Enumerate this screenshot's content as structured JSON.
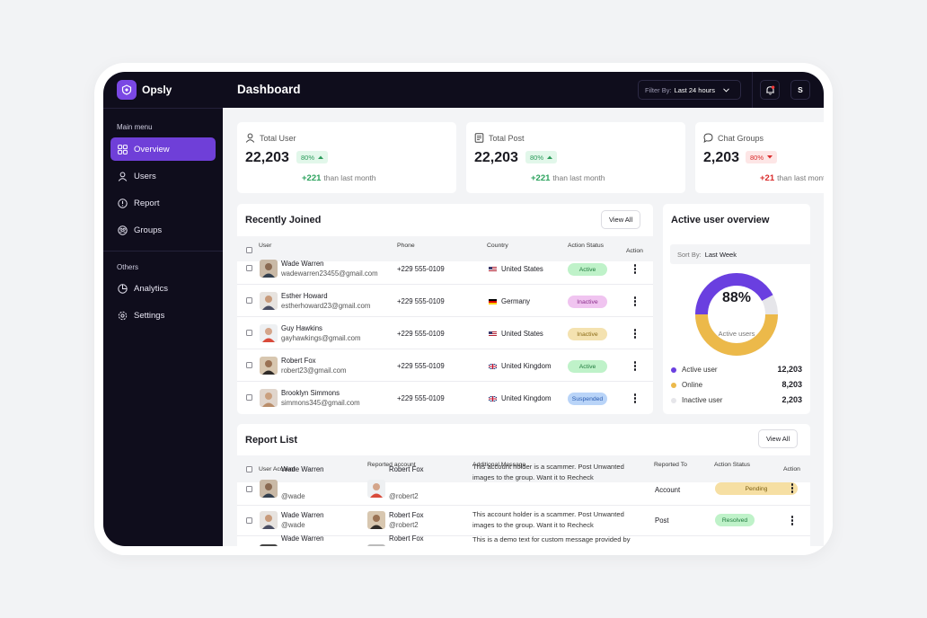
{
  "app": {
    "name": "Opsly"
  },
  "colors": {
    "accent": "#6f3fd8",
    "sidebar_bg": "#0f0d1c",
    "active_user": "#6a3fe0",
    "online": "#ecb94a",
    "inactive_user": "#e6e6ea"
  },
  "sidebar": {
    "main_heading": "Main menu",
    "main_items": [
      {
        "label": "Overview",
        "icon": "grid-icon",
        "active": true
      },
      {
        "label": "Users",
        "icon": "user-icon"
      },
      {
        "label": "Report",
        "icon": "alert-icon"
      },
      {
        "label": "Groups",
        "icon": "groups-icon"
      }
    ],
    "others_heading": "Others",
    "other_items": [
      {
        "label": "Analytics",
        "icon": "pie-icon"
      },
      {
        "label": "Settings",
        "icon": "gear-icon"
      }
    ]
  },
  "topbar": {
    "title": "Dashboard",
    "filter_label": "Filter By:",
    "filter_value": "Last 24 hours",
    "avatar_initial": "S"
  },
  "stats": [
    {
      "label": "Total User",
      "value": "22,203",
      "pct": "80%",
      "trend": "up",
      "delta": "+221",
      "delta_text": "than last month"
    },
    {
      "label": "Total Post",
      "value": "22,203",
      "pct": "80%",
      "trend": "up",
      "delta": "+221",
      "delta_text": "than last month"
    },
    {
      "label": "Chat Groups",
      "value": "2,203",
      "pct": "80%",
      "trend": "down",
      "delta": "+21",
      "delta_text": "than last month"
    }
  ],
  "recent": {
    "title": "Recently Joined",
    "view_all": "View All",
    "columns": [
      "User",
      "Phone",
      "Country",
      "Action Status",
      "Action"
    ],
    "rows": [
      {
        "name": "Wade Warren",
        "email": "wadewarren23455@gmail.com",
        "phone": "+229 555-0109",
        "country": "United States",
        "flag": "us",
        "status": "Active"
      },
      {
        "name": "Esther Howard",
        "email": "estherhoward23@gmail.com",
        "phone": "+229 555-0109",
        "country": "Germany",
        "flag": "de",
        "status": "Inactive"
      },
      {
        "name": "Guy Hawkins",
        "email": "gayhawkings@gmail.com",
        "phone": "+229 555-0109",
        "country": "United States",
        "flag": "us",
        "status": "Inactive"
      },
      {
        "name": "Robert Fox",
        "email": "robert23@gmail.com",
        "phone": "+229 555-0109",
        "country": "United Kingdom",
        "flag": "uk",
        "status": "Active"
      },
      {
        "name": "Brooklyn Simmons",
        "email": "simmons345@gmail.com",
        "phone": "+229 555-0109",
        "country": "United Kingdom",
        "flag": "uk",
        "status": "Suspended"
      }
    ]
  },
  "overview": {
    "title": "Active user overview",
    "sort_label": "Sort By:",
    "sort_value": "Last Week",
    "donut_pct": "88%",
    "donut_caption": "Active users",
    "legend": [
      {
        "label": "Active user",
        "value": "12,203"
      },
      {
        "label": "Online",
        "value": "8,203"
      },
      {
        "label": "Inactive user",
        "value": "2,203"
      }
    ]
  },
  "reports": {
    "title": "Report List",
    "view_all": "View All",
    "columns": [
      "User Account",
      "Reported account",
      "Additional Message",
      "Reported To",
      "Action Status",
      "Action"
    ],
    "rows": [
      {
        "user": "Wade Warren",
        "handle": "@wade",
        "reported": "Robert Fox",
        "reported_handle": "@robert2",
        "message": "This account holder is a scammer. Post Unwanted images to the group. Want it to Recheck",
        "to": "Account",
        "status": "Pending"
      },
      {
        "user": "Wade Warren",
        "handle": "@wade",
        "reported": "Robert Fox",
        "reported_handle": "@robert2",
        "message": "This account holder is a scammer. Post Unwanted images to the group. Want it to Recheck",
        "to": "Post",
        "status": "Resolved"
      },
      {
        "user": "Wade Warren",
        "handle": "",
        "reported": "Robert Fox",
        "reported_handle": "",
        "message": "This is a demo text for custom message provided by",
        "to": "",
        "status": ""
      }
    ]
  }
}
